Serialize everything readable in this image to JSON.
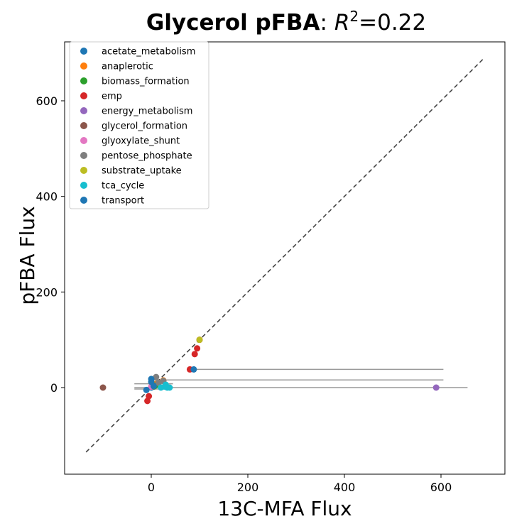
{
  "chart_data": {
    "type": "scatter",
    "title_bold": "Glycerol pFBA",
    "title_sep": ": ",
    "title_r2_symbol": "R",
    "title_r2_exp": "2",
    "title_r2_value": "=0.22",
    "xlabel": "13C-MFA Flux",
    "ylabel": "pFBA Flux",
    "xlim": [
      -180,
      730
    ],
    "ylim": [
      -180,
      730
    ],
    "xticks": [
      0,
      200,
      400,
      600
    ],
    "yticks": [
      0,
      200,
      400,
      600
    ],
    "identity_line": {
      "from": -135,
      "to": 690,
      "color": "#444444"
    },
    "error_bar_color": "#999999",
    "legend_position": "upper-left",
    "series": [
      {
        "name": "acetate_metabolism",
        "color": "#1f77b4",
        "points": [
          {
            "x": 0,
            "y": 0
          },
          {
            "x": 2,
            "y": 5
          }
        ],
        "xerr": []
      },
      {
        "name": "anaplerotic",
        "color": "#ff7f0e",
        "points": [
          {
            "x": 25,
            "y": 15
          },
          {
            "x": 10,
            "y": 8
          }
        ],
        "xerr": []
      },
      {
        "name": "biomass_formation",
        "color": "#2ca02c",
        "points": [
          {
            "x": 5,
            "y": 2
          },
          {
            "x": 8,
            "y": 4
          }
        ],
        "xerr": []
      },
      {
        "name": "emp",
        "color": "#d62728",
        "points": [
          {
            "x": 100,
            "y": 100
          },
          {
            "x": 95,
            "y": 82
          },
          {
            "x": 90,
            "y": 70
          },
          {
            "x": 80,
            "y": 38
          },
          {
            "x": -5,
            "y": -18
          },
          {
            "x": -8,
            "y": -28
          }
        ],
        "xerr": [
          {
            "y": 38,
            "lo": 75,
            "hi": 605
          }
        ]
      },
      {
        "name": "energy_metabolism",
        "color": "#9467bd",
        "points": [
          {
            "x": 590,
            "y": 0
          }
        ],
        "xerr": [
          {
            "y": 0,
            "lo": -35,
            "hi": 655
          }
        ]
      },
      {
        "name": "glycerol_formation",
        "color": "#8c564b",
        "points": [
          {
            "x": -100,
            "y": 0
          }
        ],
        "xerr": []
      },
      {
        "name": "glyoxylate_shunt",
        "color": "#e377c2",
        "points": [
          {
            "x": 0,
            "y": 2
          }
        ],
        "xerr": []
      },
      {
        "name": "pentose_phosphate",
        "color": "#7f7f7f",
        "points": [
          {
            "x": 10,
            "y": 22
          },
          {
            "x": 25,
            "y": 14
          },
          {
            "x": 15,
            "y": 10
          }
        ],
        "xerr": [
          {
            "y": 16,
            "lo": -5,
            "hi": 605
          },
          {
            "y": 8,
            "lo": -35,
            "hi": 45
          }
        ]
      },
      {
        "name": "substrate_uptake",
        "color": "#bcbd22",
        "points": [
          {
            "x": 100,
            "y": 100
          }
        ],
        "xerr": []
      },
      {
        "name": "tca_cycle",
        "color": "#17becf",
        "points": [
          {
            "x": 20,
            "y": 0
          },
          {
            "x": 28,
            "y": 2
          },
          {
            "x": 33,
            "y": 0
          },
          {
            "x": 38,
            "y": 0
          },
          {
            "x": 30,
            "y": 6
          }
        ],
        "xerr": [
          {
            "y": -3,
            "lo": -35,
            "hi": 40
          }
        ]
      },
      {
        "name": "transport",
        "color": "#1f77b4",
        "points": [
          {
            "x": 88,
            "y": 38
          },
          {
            "x": 0,
            "y": 18
          },
          {
            "x": 0,
            "y": 12
          },
          {
            "x": -10,
            "y": -5
          },
          {
            "x": 5,
            "y": 3
          }
        ],
        "xerr": []
      }
    ]
  }
}
